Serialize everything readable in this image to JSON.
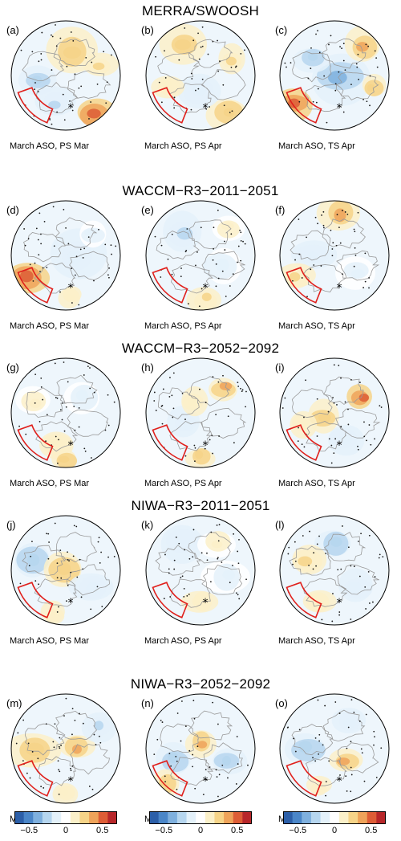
{
  "rows": [
    {
      "title": "MERRA/SWOOSH",
      "panels": [
        {
          "letter": "(a)",
          "caption": "March ASO,  PS Mar"
        },
        {
          "letter": "(b)",
          "caption": "March ASO,  PS Apr"
        },
        {
          "letter": "(c)",
          "caption": "March ASO,  TS Apr"
        }
      ]
    },
    {
      "title": "WACCM−R3−2011−2051",
      "panels": [
        {
          "letter": "(d)",
          "caption": "March ASO,  PS Mar"
        },
        {
          "letter": "(e)",
          "caption": "March ASO,  PS Apr"
        },
        {
          "letter": "(f)",
          "caption": "March ASO,  TS Apr"
        }
      ]
    },
    {
      "title": "WACCM−R3−2052−2092",
      "panels": [
        {
          "letter": "(g)",
          "caption": "March ASO,  PS Mar"
        },
        {
          "letter": "(h)",
          "caption": "March ASO,  PS Apr"
        },
        {
          "letter": "(i)",
          "caption": "March ASO,  TS Apr"
        }
      ]
    },
    {
      "title": "NIWA−R3−2011−2051",
      "panels": [
        {
          "letter": "(j)",
          "caption": "March ASO,  PS Mar"
        },
        {
          "letter": "(k)",
          "caption": "March ASO,  PS Apr"
        },
        {
          "letter": "(l)",
          "caption": "March ASO,  TS Apr"
        }
      ]
    },
    {
      "title": "NIWA−R3−2052−2092",
      "panels": [
        {
          "letter": "(m)",
          "caption": "March ASO,  PS Mar"
        },
        {
          "letter": "(n)",
          "caption": "March ASO,  PS Apr"
        },
        {
          "letter": "(o)",
          "caption": "March ASO,  TS Apr"
        }
      ]
    }
  ],
  "colorbar": {
    "ticks": [
      "−0.5",
      "0",
      "0.5"
    ],
    "tick_values": [
      -0.5,
      0,
      0.5
    ],
    "range": [
      -0.7,
      0.7
    ],
    "colors": [
      "#2c5fa8",
      "#4b86c8",
      "#7fb0de",
      "#b6d6ef",
      "#e4f1fa",
      "#ffffff",
      "#fbf0c9",
      "#f6d488",
      "#eea35a",
      "#dd5d36",
      "#b7272a"
    ]
  },
  "map_colors": {
    "land_outline": "#9a9a9a",
    "region_box": "#e0201c",
    "stipple": "#1a1a1a"
  }
}
